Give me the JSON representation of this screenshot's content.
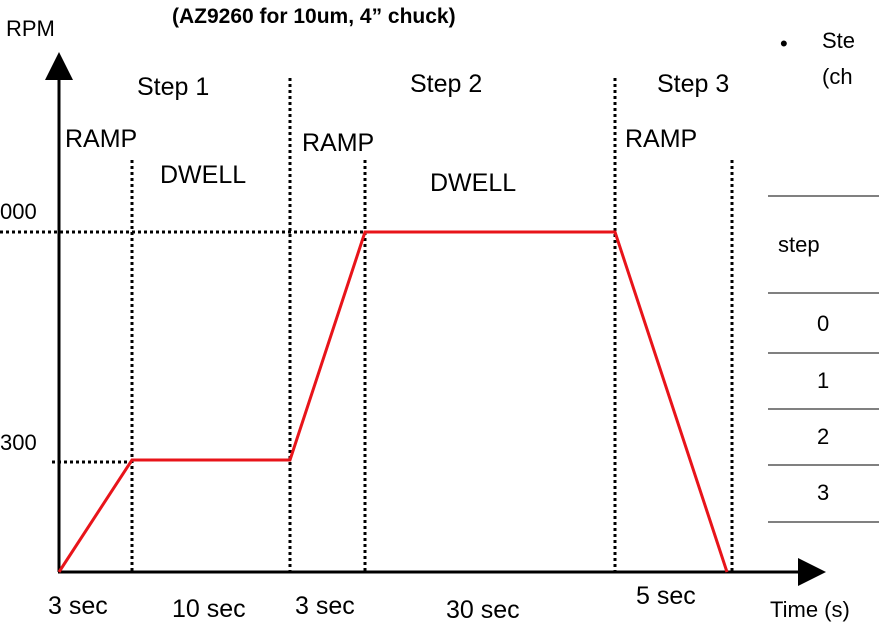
{
  "header": {
    "title": "(AZ9260 for 10um, 4” chuck)"
  },
  "side_note": {
    "bullet": "•",
    "line1": "Ste",
    "line2": "(ch"
  },
  "axes": {
    "y_label": "RPM",
    "x_label": "Time (s)"
  },
  "rpm_levels": {
    "high_label": "000",
    "low_label": "300"
  },
  "steps": {
    "step1": "Step 1",
    "step2": "Step 2",
    "step3": "Step 3"
  },
  "phases": {
    "ramp1": "RAMP",
    "dwell1": "DWELL",
    "ramp2": "RAMP",
    "dwell2": "DWELL",
    "ramp3": "RAMP"
  },
  "durations": {
    "d1": "3 sec",
    "d2": "10 sec",
    "d3": "3 sec",
    "d4": "30 sec",
    "d5": "5 sec"
  },
  "table": {
    "header": "step",
    "rows": [
      "0",
      "1",
      "2",
      "3"
    ]
  },
  "colors": {
    "profile": "#e8141a",
    "axes": "#000000"
  }
}
